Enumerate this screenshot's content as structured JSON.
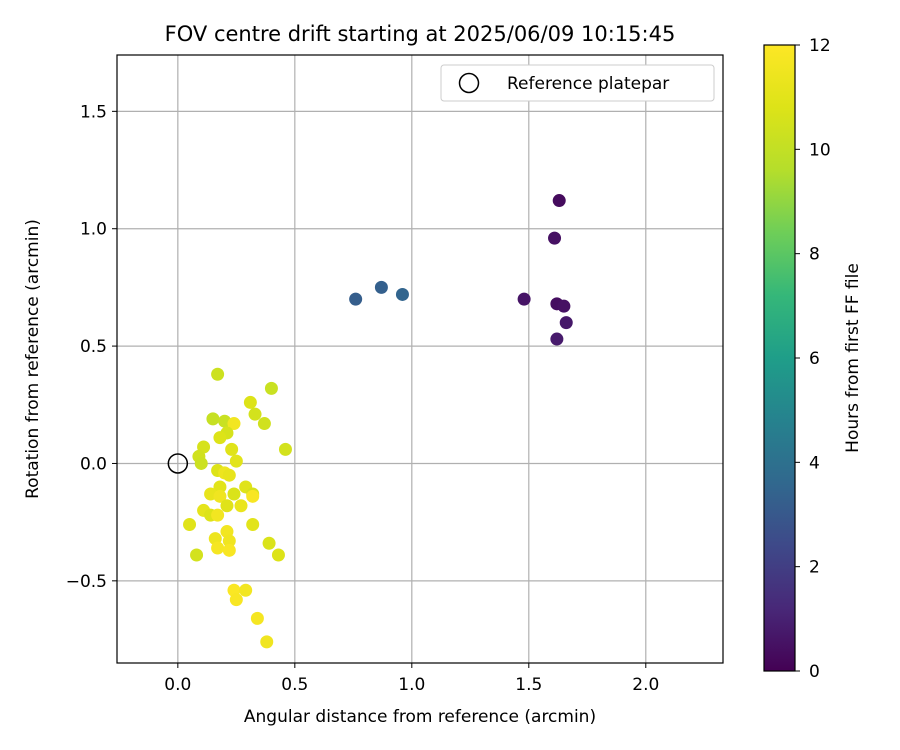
{
  "chart_data": {
    "type": "scatter",
    "title": "FOV centre drift starting at 2025/06/09 10:15:45",
    "xlabel": "Angular distance from reference (arcmin)",
    "ylabel": "Rotation from reference (arcmin)",
    "xlim": [
      -0.26,
      2.33
    ],
    "ylim": [
      -0.85,
      1.74
    ],
    "xticks": [
      0.0,
      0.5,
      1.0,
      1.5,
      2.0
    ],
    "xtick_labels": [
      "0.0",
      "0.5",
      "1.0",
      "1.5",
      "2.0"
    ],
    "yticks": [
      -0.5,
      0.0,
      0.5,
      1.0,
      1.5
    ],
    "ytick_labels": [
      "−0.5",
      "0.0",
      "0.5",
      "1.0",
      "1.5"
    ],
    "grid": true,
    "legend_position": "top-right",
    "legend": [
      "Reference platepar"
    ],
    "reference_point": {
      "x": 0.0,
      "y": 0.0,
      "marker": "open circle",
      "color": "#000000"
    },
    "colorbar": {
      "label": "Hours from first FF file",
      "colormap": "viridis",
      "range": [
        0,
        12
      ],
      "ticks": [
        0,
        2,
        4,
        6,
        8,
        10,
        12
      ],
      "tick_labels": [
        "0",
        "2",
        "4",
        "6",
        "8",
        "10",
        "12"
      ]
    },
    "points": [
      {
        "x": 1.63,
        "y": 1.12,
        "hours": 0.3
      },
      {
        "x": 1.61,
        "y": 0.96,
        "hours": 0.5
      },
      {
        "x": 1.48,
        "y": 0.7,
        "hours": 0.6
      },
      {
        "x": 1.62,
        "y": 0.68,
        "hours": 0.4
      },
      {
        "x": 1.65,
        "y": 0.67,
        "hours": 0.5
      },
      {
        "x": 1.66,
        "y": 0.6,
        "hours": 0.7
      },
      {
        "x": 1.62,
        "y": 0.53,
        "hours": 0.8
      },
      {
        "x": 0.76,
        "y": 0.7,
        "hours": 3.2
      },
      {
        "x": 0.87,
        "y": 0.75,
        "hours": 3.3
      },
      {
        "x": 0.96,
        "y": 0.72,
        "hours": 3.5
      },
      {
        "x": 0.17,
        "y": 0.38,
        "hours": 10.3
      },
      {
        "x": 0.4,
        "y": 0.32,
        "hours": 10.2
      },
      {
        "x": 0.31,
        "y": 0.26,
        "hours": 10.8
      },
      {
        "x": 0.33,
        "y": 0.21,
        "hours": 10.5
      },
      {
        "x": 0.15,
        "y": 0.19,
        "hours": 10.1
      },
      {
        "x": 0.2,
        "y": 0.18,
        "hours": 10.2
      },
      {
        "x": 0.24,
        "y": 0.17,
        "hours": 11.6
      },
      {
        "x": 0.37,
        "y": 0.17,
        "hours": 10.4
      },
      {
        "x": 0.21,
        "y": 0.13,
        "hours": 10.6
      },
      {
        "x": 0.18,
        "y": 0.11,
        "hours": 10.8
      },
      {
        "x": 0.11,
        "y": 0.07,
        "hours": 10.6
      },
      {
        "x": 0.46,
        "y": 0.06,
        "hours": 10.5
      },
      {
        "x": 0.23,
        "y": 0.06,
        "hours": 10.9
      },
      {
        "x": 0.09,
        "y": 0.03,
        "hours": 10.4
      },
      {
        "x": 0.1,
        "y": 0.0,
        "hours": 10.3
      },
      {
        "x": 0.25,
        "y": 0.01,
        "hours": 11.0
      },
      {
        "x": 0.17,
        "y": -0.03,
        "hours": 10.8
      },
      {
        "x": 0.2,
        "y": -0.04,
        "hours": 11.4
      },
      {
        "x": 0.22,
        "y": -0.05,
        "hours": 11.2
      },
      {
        "x": 0.18,
        "y": -0.1,
        "hours": 11.0
      },
      {
        "x": 0.29,
        "y": -0.1,
        "hours": 10.9
      },
      {
        "x": 0.14,
        "y": -0.13,
        "hours": 11.2
      },
      {
        "x": 0.24,
        "y": -0.13,
        "hours": 10.7
      },
      {
        "x": 0.18,
        "y": -0.14,
        "hours": 11.5
      },
      {
        "x": 0.32,
        "y": -0.13,
        "hours": 10.6
      },
      {
        "x": 0.32,
        "y": -0.14,
        "hours": 11.8
      },
      {
        "x": 0.21,
        "y": -0.18,
        "hours": 10.9
      },
      {
        "x": 0.27,
        "y": -0.18,
        "hours": 11.3
      },
      {
        "x": 0.11,
        "y": -0.2,
        "hours": 11.1
      },
      {
        "x": 0.14,
        "y": -0.22,
        "hours": 10.8
      },
      {
        "x": 0.17,
        "y": -0.22,
        "hours": 11.6
      },
      {
        "x": 0.05,
        "y": -0.26,
        "hours": 10.9
      },
      {
        "x": 0.32,
        "y": -0.26,
        "hours": 11.0
      },
      {
        "x": 0.21,
        "y": -0.29,
        "hours": 11.6
      },
      {
        "x": 0.16,
        "y": -0.32,
        "hours": 11.4
      },
      {
        "x": 0.22,
        "y": -0.33,
        "hours": 11.5
      },
      {
        "x": 0.39,
        "y": -0.34,
        "hours": 10.7
      },
      {
        "x": 0.17,
        "y": -0.36,
        "hours": 11.7
      },
      {
        "x": 0.22,
        "y": -0.37,
        "hours": 11.8
      },
      {
        "x": 0.08,
        "y": -0.39,
        "hours": 10.5
      },
      {
        "x": 0.43,
        "y": -0.39,
        "hours": 10.8
      },
      {
        "x": 0.24,
        "y": -0.54,
        "hours": 11.9
      },
      {
        "x": 0.29,
        "y": -0.54,
        "hours": 11.6
      },
      {
        "x": 0.25,
        "y": -0.58,
        "hours": 11.8
      },
      {
        "x": 0.34,
        "y": -0.66,
        "hours": 11.7
      },
      {
        "x": 0.38,
        "y": -0.76,
        "hours": 11.5
      }
    ]
  }
}
